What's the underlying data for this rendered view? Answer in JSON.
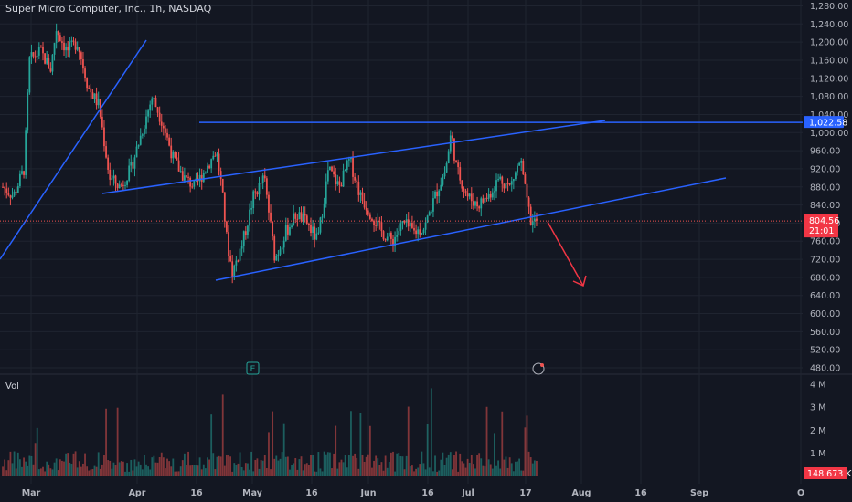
{
  "header": {
    "title": "Super Micro Computer, Inc., 1h, NASDAQ"
  },
  "volume_label": "Vol",
  "markers": {
    "earnings_letter": "E"
  },
  "colors": {
    "background": "#131722",
    "up": "#26a69a",
    "down": "#ef5350",
    "trendline": "#2962ff",
    "arrow": "#f23645",
    "grid": "#1f2430"
  },
  "chart_data": {
    "type": "candlestick",
    "title": "Super Micro Computer, Inc., 1h, NASDAQ",
    "price_axis": {
      "ticks": [
        "1,280.00",
        "1,240.00",
        "1,200.00",
        "1,160.00",
        "1,120.00",
        "1,080.00",
        "1,040.00",
        "1,000.00",
        "960.00",
        "920.00",
        "880.00",
        "840.00",
        "800.00",
        "760.00",
        "720.00",
        "680.00",
        "640.00",
        "600.00",
        "560.00",
        "520.00",
        "480.00"
      ],
      "range": [
        470,
        1285
      ]
    },
    "volume_axis": {
      "ticks": [
        "4 M",
        "3 M",
        "2 M",
        "1 M"
      ]
    },
    "x_axis": {
      "ticks": [
        "Mar",
        "Apr",
        "16",
        "May",
        "16",
        "Jun",
        "16",
        "Jul",
        "17",
        "Aug",
        "16",
        "Sep",
        "O"
      ]
    },
    "current_price": {
      "price": 804.56,
      "label": "804.56",
      "countdown": "21:01"
    },
    "resistance_level": {
      "price": 1022.58,
      "label": "1,022.58"
    },
    "last_volume": {
      "label": "148.673 K"
    },
    "price_path": [
      [
        0,
        880
      ],
      [
        0.02,
        860
      ],
      [
        0.04,
        920
      ],
      [
        0.05,
        1160
      ],
      [
        0.07,
        1180
      ],
      [
        0.09,
        1140
      ],
      [
        0.1,
        1230
      ],
      [
        0.12,
        1180
      ],
      [
        0.14,
        1200
      ],
      [
        0.16,
        1100
      ],
      [
        0.18,
        1060
      ],
      [
        0.2,
        900
      ],
      [
        0.22,
        880
      ],
      [
        0.24,
        920
      ],
      [
        0.26,
        1000
      ],
      [
        0.28,
        1080
      ],
      [
        0.3,
        1020
      ],
      [
        0.32,
        940
      ],
      [
        0.34,
        900
      ],
      [
        0.36,
        880
      ],
      [
        0.38,
        920
      ],
      [
        0.4,
        960
      ],
      [
        0.41,
        880
      ],
      [
        0.42,
        760
      ],
      [
        0.43,
        690
      ],
      [
        0.45,
        760
      ],
      [
        0.47,
        860
      ],
      [
        0.49,
        900
      ],
      [
        0.51,
        720
      ],
      [
        0.53,
        780
      ],
      [
        0.55,
        820
      ],
      [
        0.57,
        800
      ],
      [
        0.59,
        760
      ],
      [
        0.61,
        920
      ],
      [
        0.63,
        880
      ],
      [
        0.65,
        940
      ],
      [
        0.67,
        860
      ],
      [
        0.69,
        820
      ],
      [
        0.71,
        780
      ],
      [
        0.73,
        760
      ],
      [
        0.75,
        800
      ],
      [
        0.77,
        780
      ],
      [
        0.79,
        790
      ],
      [
        0.81,
        860
      ],
      [
        0.83,
        920
      ],
      [
        0.84,
        1000
      ],
      [
        0.85,
        920
      ],
      [
        0.87,
        860
      ],
      [
        0.89,
        840
      ],
      [
        0.91,
        860
      ],
      [
        0.93,
        900
      ],
      [
        0.95,
        880
      ],
      [
        0.97,
        940
      ],
      [
        0.98,
        860
      ],
      [
        0.99,
        800
      ],
      [
        1.0,
        804.56
      ]
    ]
  }
}
